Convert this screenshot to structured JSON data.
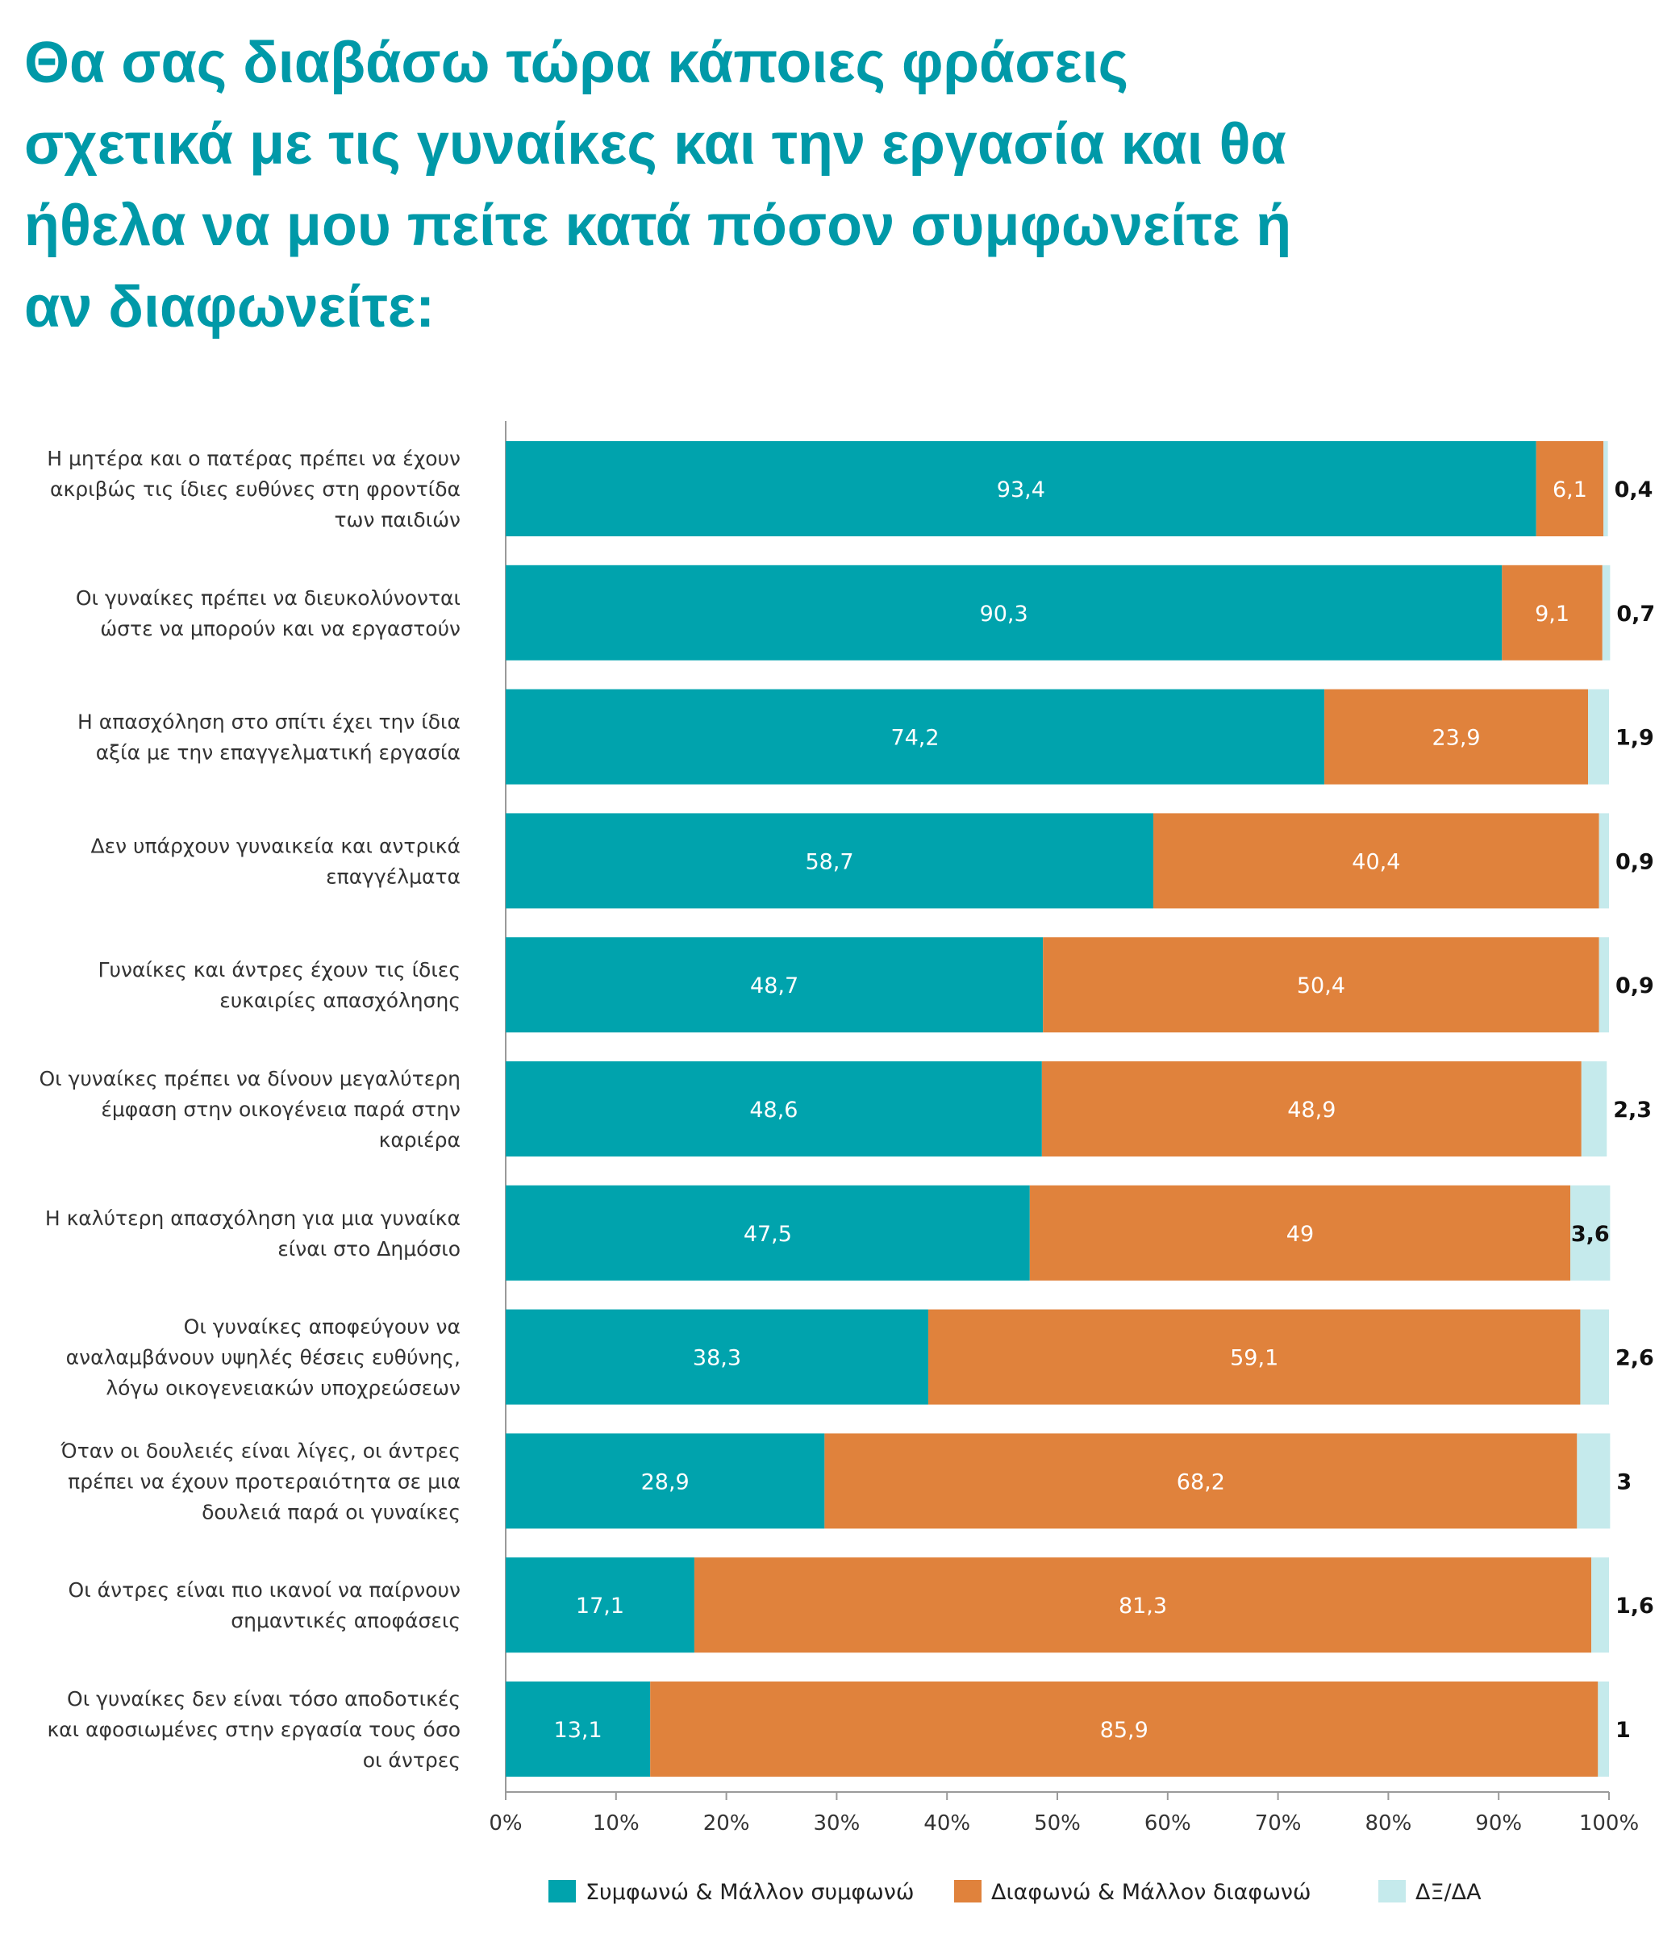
{
  "title": "Θα σας διαβάσω τώρα κάποιες φράσεις\nσχετικά με τις γυναίκες και την εργασία και θα\nήθελα να μου πείτε κατά πόσον συμφωνείτε ή\nαν διαφωνείτε:",
  "chart_data": {
    "type": "bar",
    "orientation": "horizontal",
    "stacked": true,
    "categories": [
      [
        "Η μητέρα και ο πατέρας πρέπει να έχουν",
        "ακριβώς τις ίδιες ευθύνες στη φροντίδα",
        "των παιδιών"
      ],
      [
        "Οι γυναίκες πρέπει να διευκολύνονται",
        "ώστε να μπορούν και να εργαστούν"
      ],
      [
        "Η απασχόληση στο σπίτι έχει την ίδια",
        "αξία με την επαγγελματική εργασία"
      ],
      [
        "Δεν υπάρχουν γυναικεία και αντρικά",
        "επαγγέλματα"
      ],
      [
        "Γυναίκες και άντρες έχουν τις ίδιες",
        "ευκαιρίες απασχόλησης"
      ],
      [
        "Οι γυναίκες πρέπει να δίνουν μεγαλύτερη",
        "έμφαση στην οικογένεια παρά στην",
        "καριέρα"
      ],
      [
        "Η καλύτερη απασχόληση για μια γυναίκα",
        "είναι στο Δημόσιο"
      ],
      [
        "Οι γυναίκες αποφεύγουν να",
        "αναλαμβάνουν υψηλές θέσεις ευθύνης,",
        "λόγω οικογενειακών υποχρεώσεων"
      ],
      [
        "Όταν οι δουλειές είναι λίγες, οι άντρες",
        "πρέπει να έχουν προτεραιότητα σε μια",
        "δουλειά παρά οι γυναίκες"
      ],
      [
        "Οι άντρες είναι πιο ικανοί να παίρνουν",
        "σημαντικές αποφάσεις"
      ],
      [
        "Οι γυναίκες δεν είναι τόσο αποδοτικές",
        "και αφοσιωμένες στην εργασία τους όσο",
        "οι άντρες"
      ]
    ],
    "series": [
      {
        "name": "Συμφωνώ & Μάλλον συμφωνώ",
        "color": "#00a3ad",
        "values": [
          93.4,
          90.3,
          74.2,
          58.7,
          48.7,
          48.6,
          47.5,
          38.3,
          28.9,
          17.1,
          13.1
        ],
        "labels": [
          "93,4",
          "90,3",
          "74,2",
          "58,7",
          "48,7",
          "48,6",
          "47,5",
          "38,3",
          "28,9",
          "17,1",
          "13,1"
        ]
      },
      {
        "name": "Διαφωνώ & Μάλλον διαφωνώ",
        "color": "#e0823c",
        "values": [
          6.1,
          9.1,
          23.9,
          40.4,
          50.4,
          48.9,
          49,
          59.1,
          68.2,
          81.3,
          85.9
        ],
        "labels": [
          "6,1",
          "9,1",
          "23,9",
          "40,4",
          "50,4",
          "48,9",
          "49",
          "59,1",
          "68,2",
          "81,3",
          "85,9"
        ]
      },
      {
        "name": "ΔΞ/ΔΑ",
        "color": "#c5eaec",
        "values": [
          0.4,
          0.7,
          1.9,
          0.9,
          0.9,
          2.3,
          3.6,
          2.6,
          3,
          1.6,
          1
        ],
        "labels": [
          "0,4",
          "0,7",
          "1,9",
          "0,9",
          "0,9",
          "2,3",
          "3,6",
          "2,6",
          "3",
          "1,6",
          "1"
        ]
      }
    ],
    "xlim": [
      0,
      100
    ],
    "xticks": [
      "0%",
      "10%",
      "20%",
      "30%",
      "40%",
      "50%",
      "60%",
      "70%",
      "80%",
      "90%",
      "100%"
    ],
    "legend_position": "bottom-right",
    "grid": false
  }
}
